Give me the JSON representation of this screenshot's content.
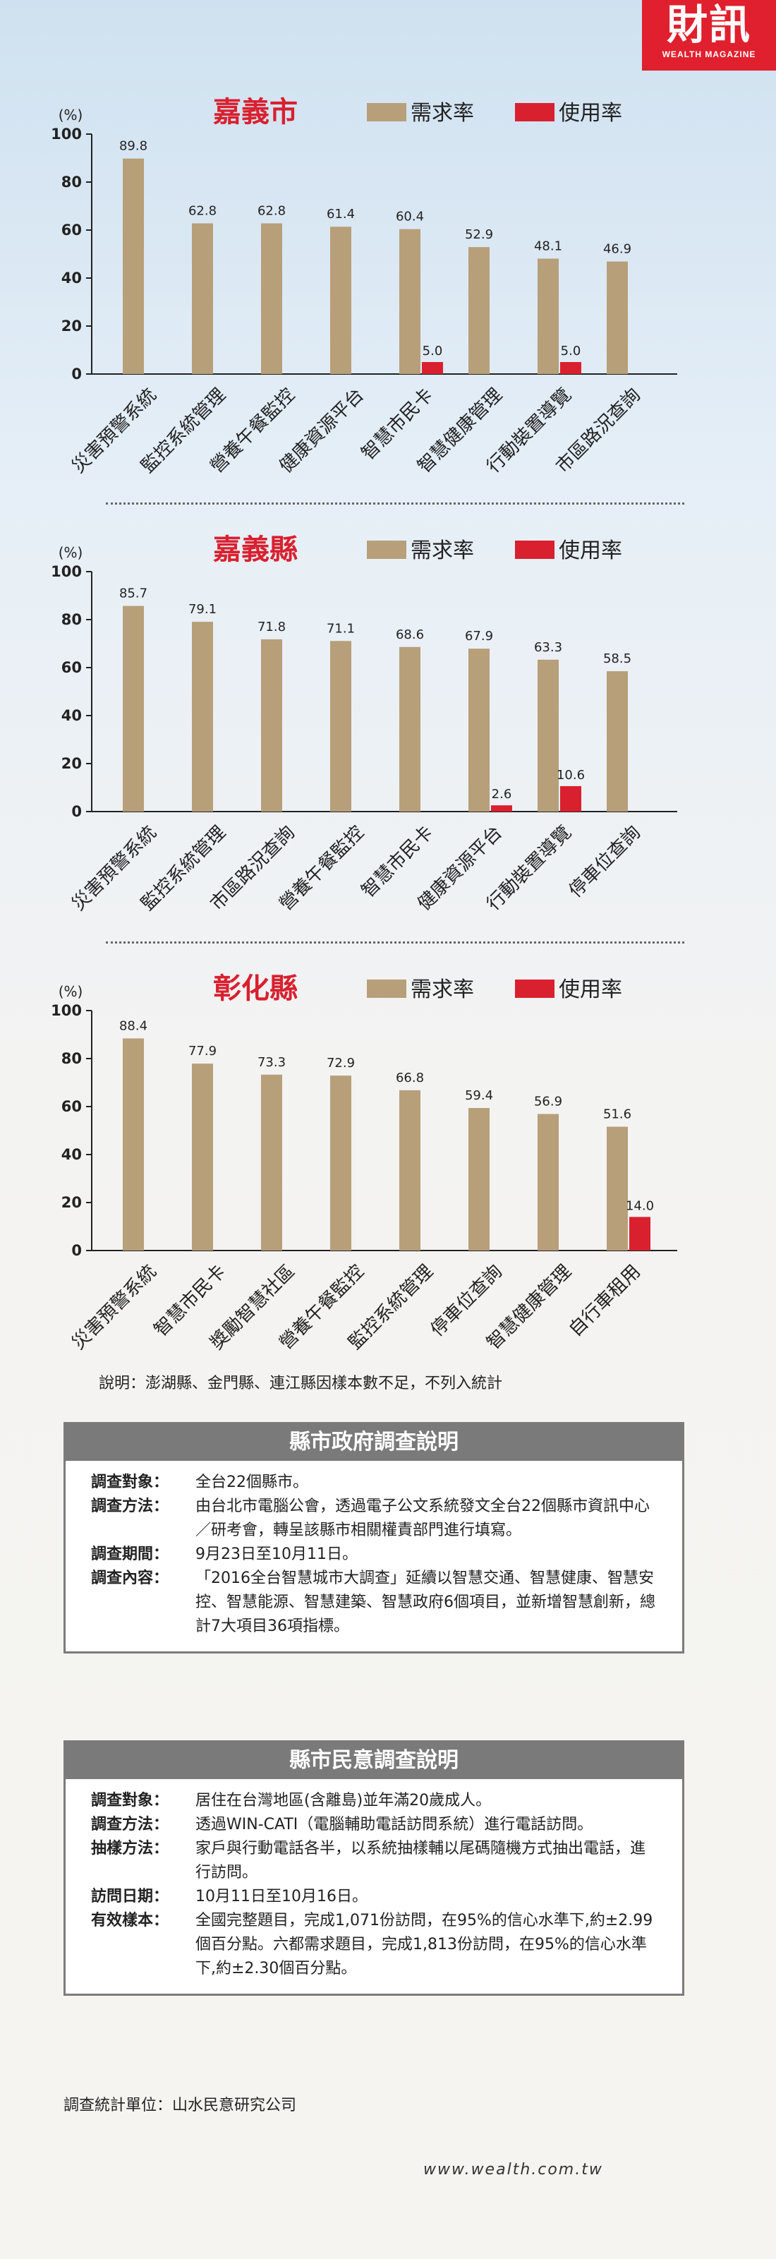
{
  "logo": {
    "main": "財訊",
    "sub": "WEALTH MAGAZINE"
  },
  "legend": {
    "demand": "需求率",
    "usage": "使用率"
  },
  "colors": {
    "demand": "#b79f7a",
    "usage": "#d9202f",
    "title": "#d9202f"
  },
  "chart_data": [
    {
      "type": "bar",
      "title": "嘉義市",
      "ylabel": "(%)",
      "ylim": [
        0,
        100
      ],
      "yticks": [
        "0",
        "20",
        "40",
        "60",
        "80",
        "100"
      ],
      "categories": [
        "災害預警系統",
        "監控系統管理",
        "營養午餐監控",
        "健康資源平台",
        "智慧市民卡",
        "智慧健康管理",
        "行動裝置導覽",
        "市區路況查詢"
      ],
      "series": [
        {
          "name": "需求率",
          "values": [
            89.8,
            62.8,
            62.8,
            61.4,
            60.4,
            52.9,
            48.1,
            46.9
          ],
          "labels": [
            "89.8",
            "62.8",
            "62.8",
            "61.4",
            "60.4",
            "52.9",
            "48.1",
            "46.9"
          ]
        },
        {
          "name": "使用率",
          "values": [
            null,
            null,
            null,
            null,
            5.0,
            null,
            5.0,
            null
          ],
          "labels": [
            "",
            "",
            "",
            "",
            "5.0",
            "",
            "5.0",
            ""
          ]
        }
      ]
    },
    {
      "type": "bar",
      "title": "嘉義縣",
      "ylabel": "(%)",
      "ylim": [
        0,
        100
      ],
      "yticks": [
        "0",
        "20",
        "40",
        "60",
        "80",
        "100"
      ],
      "categories": [
        "災害預警系統",
        "監控系統管理",
        "市區路況查詢",
        "營養午餐監控",
        "智慧市民卡",
        "健康資源平台",
        "行動裝置導覽",
        "停車位查詢"
      ],
      "series": [
        {
          "name": "需求率",
          "values": [
            85.7,
            79.1,
            71.8,
            71.1,
            68.6,
            67.9,
            63.3,
            58.5
          ],
          "labels": [
            "85.7",
            "79.1",
            "71.8",
            "71.1",
            "68.6",
            "67.9",
            "63.3",
            "58.5"
          ]
        },
        {
          "name": "使用率",
          "values": [
            null,
            null,
            null,
            null,
            null,
            2.6,
            10.6,
            null
          ],
          "labels": [
            "",
            "",
            "",
            "",
            "",
            "2.6",
            "10.6",
            ""
          ]
        }
      ]
    },
    {
      "type": "bar",
      "title": "彰化縣",
      "ylabel": "(%)",
      "ylim": [
        0,
        100
      ],
      "yticks": [
        "0",
        "20",
        "40",
        "60",
        "80",
        "100"
      ],
      "categories": [
        "災害預警系統",
        "智慧市民卡",
        "獎勵智慧社區",
        "營養午餐監控",
        "監控系統管理",
        "停車位查詢",
        "智慧健康管理",
        "自行車租用"
      ],
      "series": [
        {
          "name": "需求率",
          "values": [
            88.4,
            77.9,
            73.3,
            72.9,
            66.8,
            59.4,
            56.9,
            51.6
          ],
          "labels": [
            "88.4",
            "77.9",
            "73.3",
            "72.9",
            "66.8",
            "59.4",
            "56.9",
            "51.6"
          ]
        },
        {
          "name": "使用率",
          "values": [
            null,
            null,
            null,
            null,
            null,
            null,
            null,
            14.0
          ],
          "labels": [
            "",
            "",
            "",
            "",
            "",
            "",
            "",
            "14.0"
          ]
        }
      ]
    }
  ],
  "note": "說明：澎湖縣、金門縣、連江縣因樣本數不足，不列入統計",
  "gov_survey": {
    "title": "縣市政府調查說明",
    "rows": [
      {
        "label": "調查對象：",
        "value": "全台22個縣市。"
      },
      {
        "label": "調查方法：",
        "value": "由台北市電腦公會，透過電子公文系統發文全台22個縣市資訊中心／研考會，轉呈該縣市相關權責部門進行填寫。"
      },
      {
        "label": "調查期間：",
        "value": "9月23日至10月11日。"
      },
      {
        "label": "調查內容：",
        "value": "「2016全台智慧城市大調查」延續以智慧交通、智慧健康、智慧安控、智慧能源、智慧建築、智慧政府6個項目，並新增智慧創新，總計7大項目36項指標。"
      }
    ]
  },
  "public_survey": {
    "title": "縣市民意調查說明",
    "rows": [
      {
        "label": "調查對象：",
        "value": "居住在台灣地區(含離島)並年滿20歲成人。"
      },
      {
        "label": "調查方法：",
        "value": "透過WIN-CATI（電腦輔助電話訪問系統）進行電話訪問。"
      },
      {
        "label": "抽樣方法：",
        "value": "家戶與行動電話各半，以系統抽樣輔以尾碼隨機方式抽出電話，進行訪問。"
      },
      {
        "label": "訪問日期：",
        "value": "10月11日至10月16日。"
      },
      {
        "label": "有效樣本：",
        "value": "全國完整題目，完成1,071份訪問，在95%的信心水準下,約±2.99個百分點。六都需求題目，完成1,813份訪問，在95%的信心水準下,約±2.30個百分點。"
      }
    ]
  },
  "survey_unit": "調查統計單位：山水民意研究公司",
  "website": "www.wealth.com.tw"
}
